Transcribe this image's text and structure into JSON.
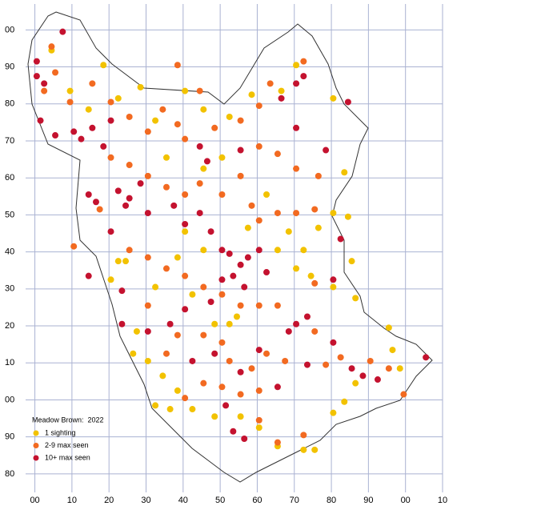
{
  "chart_data": {
    "type": "scatter",
    "legend_title": "Meadow Brown:  2022",
    "xlim": [
      -2.5,
      110
    ],
    "ylim": [
      75,
      207
    ],
    "xticks": [
      {
        "value": 0,
        "label": "00"
      },
      10,
      20,
      30,
      40,
      50,
      60,
      70,
      80,
      90,
      {
        "value": 100,
        "label": "00"
      },
      {
        "value": 110,
        "label": "10"
      }
    ],
    "yticks": [
      80,
      90,
      {
        "value": 100,
        "label": "00"
      },
      {
        "value": 110,
        "label": "10"
      },
      {
        "value": 120,
        "label": "20"
      },
      {
        "value": 130,
        "label": "30"
      },
      {
        "value": 140,
        "label": "40"
      },
      {
        "value": 150,
        "label": "50"
      },
      {
        "value": 160,
        "label": "60"
      },
      {
        "value": 170,
        "label": "70"
      },
      {
        "value": 180,
        "label": "80"
      },
      {
        "value": 190,
        "label": "90"
      },
      {
        "value": 200,
        "label": "00"
      }
    ],
    "grid": true,
    "series": [
      {
        "name": "1 sighting",
        "color": "#f2c200",
        "x": [
          4,
          9,
          14,
          18,
          22,
          28,
          32,
          40,
          45,
          52,
          58,
          66,
          70,
          80,
          83,
          84,
          80,
          76,
          72,
          70,
          74,
          80,
          86,
          85,
          62,
          57,
          45,
          40,
          32,
          22,
          24,
          20,
          27,
          26,
          30,
          34,
          38,
          32,
          36,
          42,
          48,
          55,
          60,
          65,
          72,
          75,
          80,
          83,
          86,
          95,
          96,
          98,
          48,
          52,
          54,
          42,
          38,
          65,
          68,
          45,
          50,
          35
        ],
        "y": [
          194,
          183,
          178,
          190,
          181,
          184,
          175,
          183,
          178,
          176,
          182,
          183,
          190,
          181,
          161,
          149,
          150,
          146,
          140,
          135,
          133,
          130,
          127,
          137,
          155,
          146,
          140,
          145,
          130,
          137,
          137,
          132,
          118,
          112,
          110,
          106,
          102,
          98,
          97,
          97,
          95,
          95,
          92,
          87,
          86,
          86,
          96,
          99,
          104,
          119,
          113,
          108,
          120,
          120,
          122,
          128,
          138,
          140,
          145,
          162,
          165,
          165
        ]
      },
      {
        "name": "2-9 max seen",
        "color": "#f26a21",
        "x": [
          2,
          5,
          4,
          9,
          15,
          20,
          25,
          30,
          34,
          38,
          40,
          48,
          55,
          60,
          65,
          70,
          76,
          20,
          25,
          30,
          35,
          40,
          44,
          50,
          55,
          58,
          60,
          65,
          70,
          25,
          30,
          35,
          40,
          45,
          50,
          55,
          60,
          65,
          75,
          30,
          35,
          38,
          45,
          50,
          52,
          58,
          62,
          67,
          75,
          78,
          82,
          90,
          95,
          99,
          40,
          45,
          50,
          55,
          60,
          60,
          65,
          72,
          10,
          17,
          44,
          60,
          63,
          72,
          38,
          75
        ],
        "y": [
          183,
          188,
          195,
          180,
          185,
          180,
          176,
          172,
          178,
          174,
          170,
          173,
          175,
          168,
          166,
          162,
          160,
          165,
          163,
          160,
          157,
          155,
          158,
          155,
          160,
          152,
          148,
          150,
          150,
          140,
          138,
          135,
          133,
          130,
          128,
          125,
          125,
          125,
          131,
          125,
          112,
          117,
          117,
          115,
          110,
          108,
          112,
          110,
          118,
          109,
          111,
          110,
          108,
          101,
          100,
          104,
          103,
          101,
          102,
          94,
          88,
          90,
          141,
          151,
          183,
          179,
          185,
          191,
          190,
          151
        ]
      },
      {
        "name": "10+ max seen",
        "color": "#c4122f",
        "x": [
          0,
          0,
          2,
          7,
          1,
          5,
          10,
          12,
          15,
          18,
          20,
          14,
          16,
          22,
          25,
          24,
          30,
          37,
          40,
          44,
          47,
          50,
          52,
          55,
          53,
          57,
          60,
          62,
          56,
          50,
          47,
          40,
          36,
          30,
          23,
          42,
          48,
          55,
          60,
          68,
          70,
          73,
          80,
          85,
          88,
          92,
          105,
          70,
          72,
          66,
          78,
          84,
          51,
          53,
          56,
          65,
          73,
          23,
          14,
          20,
          28,
          44,
          46,
          55,
          70,
          82,
          80
        ],
        "y": [
          191,
          187,
          185,
          199,
          175,
          171,
          172,
          170,
          173,
          168,
          175,
          155,
          153,
          156,
          154,
          152,
          150,
          152,
          147,
          150,
          145,
          140,
          139,
          136,
          133,
          138,
          140,
          134,
          130,
          132,
          126,
          124,
          120,
          118,
          120,
          110,
          112,
          107,
          113,
          118,
          120,
          122,
          115,
          108,
          106,
          105,
          111,
          185,
          187,
          181,
          167,
          180,
          98,
          91,
          89,
          103,
          109,
          129,
          133,
          145,
          158,
          168,
          164,
          167,
          173,
          143,
          132
        ]
      }
    ]
  }
}
